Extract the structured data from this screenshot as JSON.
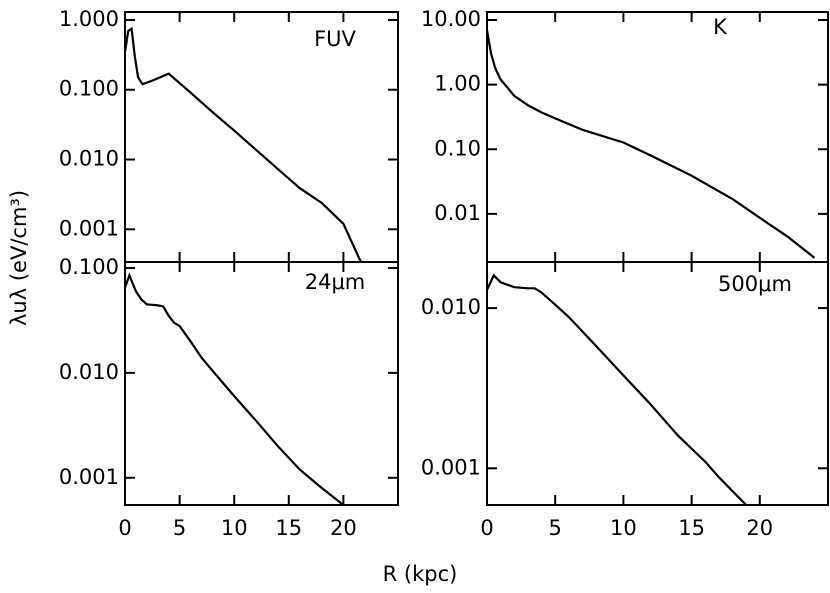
{
  "xlabel": "R (kpc)",
  "ylabel": "λuλ (eV/cm³)",
  "chart_data": [
    {
      "type": "line",
      "label": "FUV",
      "log_y": true,
      "color": "#000000",
      "x": [
        0,
        0.3,
        0.6,
        0.9,
        1.2,
        1.6,
        2.5,
        4,
        6,
        8,
        10,
        12,
        14,
        16,
        18,
        20,
        21.6
      ],
      "values": [
        0.35,
        0.7,
        0.75,
        0.3,
        0.15,
        0.12,
        0.135,
        0.17,
        0.091,
        0.048,
        0.026,
        0.0138,
        0.0073,
        0.0039,
        0.0024,
        0.0012,
        0.00034
      ],
      "xlim": [
        0,
        25
      ],
      "xticks": [
        0,
        5,
        10,
        15,
        20
      ],
      "ylim": [
        0.00034,
        1.3
      ],
      "yticks": [
        {
          "value": 1,
          "label": "1.000"
        },
        {
          "value": 0.1,
          "label": "0.100"
        },
        {
          "value": 0.01,
          "label": "0.010"
        },
        {
          "value": 0.001,
          "label": "0.001"
        }
      ]
    },
    {
      "type": "line",
      "label": "K",
      "log_y": true,
      "color": "#000000",
      "x": [
        0,
        0.3,
        0.6,
        1,
        1.5,
        2,
        3,
        4,
        5,
        7,
        10,
        12,
        15,
        18,
        20,
        22,
        24
      ],
      "values": [
        7,
        3,
        1.8,
        1.2,
        0.9,
        0.67,
        0.48,
        0.37,
        0.3,
        0.2,
        0.127,
        0.08,
        0.039,
        0.017,
        0.0087,
        0.0045,
        0.0021
      ],
      "xlim": [
        0,
        25
      ],
      "xticks": [
        0,
        5,
        10,
        15,
        20
      ],
      "ylim": [
        0.0018,
        13.3
      ],
      "yticks": [
        {
          "value": 10,
          "label": "10.00"
        },
        {
          "value": 1,
          "label": "1.00"
        },
        {
          "value": 0.1,
          "label": "0.10"
        },
        {
          "value": 0.01,
          "label": "0.01"
        }
      ]
    },
    {
      "type": "line",
      "label": "24μm",
      "log_y": true,
      "color": "#000000",
      "x": [
        0,
        0.4,
        1,
        1.5,
        2,
        3,
        3.5,
        4,
        4.5,
        5,
        6,
        7,
        8,
        10,
        12,
        14,
        16,
        18,
        20
      ],
      "values": [
        0.065,
        0.085,
        0.06,
        0.05,
        0.045,
        0.044,
        0.043,
        0.035,
        0.03,
        0.028,
        0.02,
        0.014,
        0.0105,
        0.006,
        0.0035,
        0.002,
        0.0012,
        0.0008,
        0.00055
      ],
      "xlim": [
        0,
        25
      ],
      "xticks": [
        0,
        5,
        10,
        15,
        20
      ],
      "ylim": [
        0.00055,
        0.114
      ],
      "yticks": [
        {
          "value": 0.1,
          "label": "0.100"
        },
        {
          "value": 0.01,
          "label": "0.010"
        },
        {
          "value": 0.001,
          "label": "0.001"
        }
      ]
    },
    {
      "type": "line",
      "label": "500μm",
      "log_y": true,
      "color": "#000000",
      "x": [
        0,
        0.5,
        1,
        2,
        3,
        3.5,
        4,
        5,
        6,
        8,
        10,
        12,
        14,
        16,
        17,
        18,
        19
      ],
      "values": [
        0.013,
        0.016,
        0.0145,
        0.0135,
        0.0133,
        0.0133,
        0.0125,
        0.0105,
        0.0088,
        0.0058,
        0.0038,
        0.0025,
        0.0016,
        0.0011,
        0.00088,
        0.00072,
        0.00059
      ],
      "xlim": [
        0,
        25
      ],
      "xticks": [
        0,
        5,
        10,
        15,
        20
      ],
      "ylim": [
        0.00059,
        0.0194
      ],
      "yticks": [
        {
          "value": 0.01,
          "label": "0.010"
        },
        {
          "value": 0.001,
          "label": "0.001"
        }
      ]
    }
  ]
}
